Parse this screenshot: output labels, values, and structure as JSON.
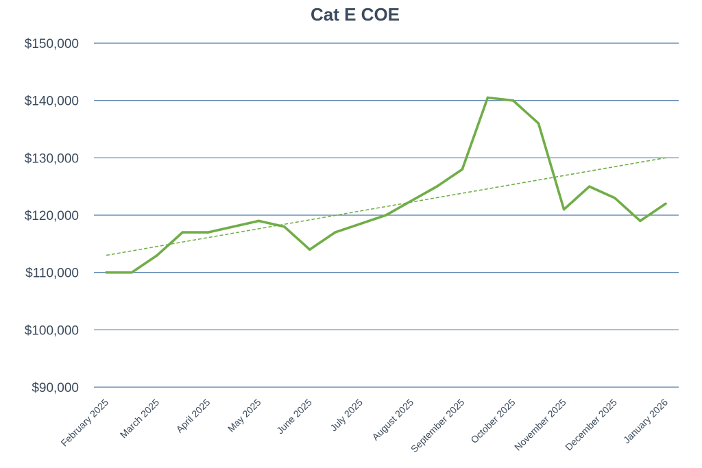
{
  "chart_data": {
    "type": "line",
    "title": "Cat E COE",
    "xlabel": "",
    "ylabel": "",
    "ylim": [
      90000,
      150000
    ],
    "y_ticks": [
      90000,
      100000,
      110000,
      120000,
      130000,
      140000,
      150000
    ],
    "y_tick_labels": [
      "$90,000",
      "$100,000",
      "$110,000",
      "$120,000",
      "$130,000",
      "$140,000",
      "$150,000"
    ],
    "x_tick_labels": [
      "February 2025",
      "March 2025",
      "April 2025",
      "May 2025",
      "June 2025",
      "July 2025",
      "August 2025",
      "September 2025",
      "October 2025",
      "November 2025",
      "December 2025",
      "January 2026"
    ],
    "x_tick_positions": [
      0,
      2,
      4,
      6,
      8,
      10,
      12,
      14,
      16,
      18,
      20,
      22
    ],
    "x_range": [
      0,
      22
    ],
    "grid": true,
    "series": [
      {
        "x": [
          0,
          1,
          2,
          3,
          4,
          5,
          6,
          7,
          8,
          9,
          10,
          11,
          12,
          13,
          14,
          15,
          16,
          17,
          18,
          19,
          20,
          21,
          22
        ],
        "values": [
          110000,
          110000,
          113000,
          117000,
          117000,
          118000,
          119000,
          118000,
          114000,
          117000,
          118500,
          120000,
          122500,
          125000,
          128000,
          140500,
          140000,
          136000,
          121000,
          125000,
          123000,
          119000,
          122000
        ],
        "color": "#70ad47",
        "style": "solid"
      },
      {
        "x": [
          0,
          22
        ],
        "values": [
          113000,
          130000
        ],
        "color": "#70ad47",
        "style": "dashed"
      }
    ],
    "grid_color": "#4f7aa8",
    "text_color": "#3b4a5c"
  }
}
